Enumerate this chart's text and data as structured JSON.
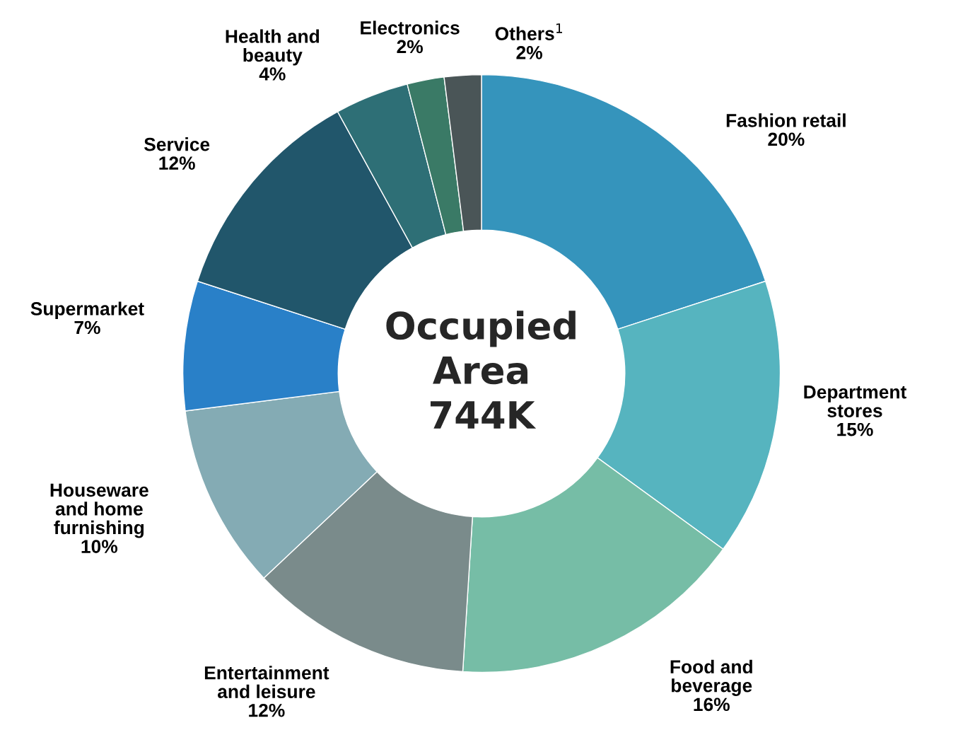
{
  "chart_data": {
    "type": "donut",
    "categories": [
      "Fashion retail",
      "Department\nstores",
      "Food and\nbeverage",
      "Entertainment\nand leisure",
      "Houseware\nand home\nfurnishing",
      "Supermarket",
      "Service",
      "Health and\nbeauty",
      "Electronics",
      "Others$^{1}$"
    ],
    "values": [
      20,
      15,
      16,
      12,
      10,
      7,
      12,
      4,
      2,
      2
    ],
    "value_labels": [
      "20%",
      "15%",
      "16%",
      "12%",
      "10%",
      "7%",
      "12%",
      "4%",
      "2%",
      "2%"
    ],
    "colors": [
      "#3594bc",
      "#56b4bf",
      "#76bda6",
      "#7a8b8b",
      "#84abb4",
      "#2980c8",
      "#21566b",
      "#2e6f76",
      "#3a7a66",
      "#4a5557"
    ],
    "annotations": [
      "Occupied\nArea\n744K"
    ]
  }
}
